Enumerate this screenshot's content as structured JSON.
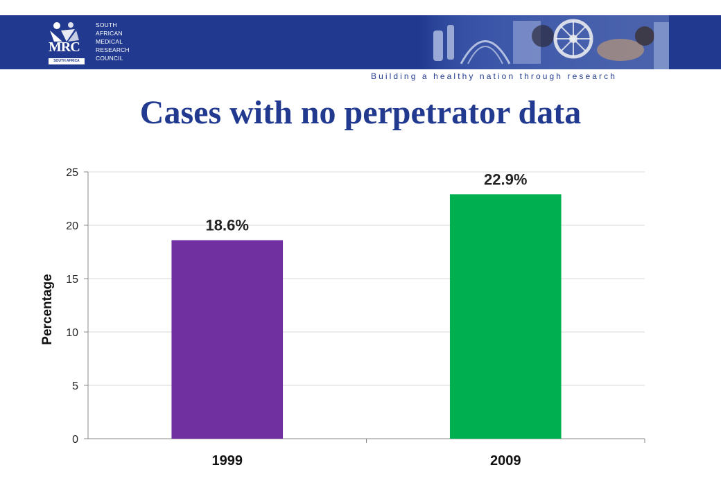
{
  "header": {
    "org_lines": [
      "SOUTH",
      "AFRICAN",
      "MEDICAL",
      "RESEARCH",
      "COUNCIL"
    ],
    "logo_text": "MRC",
    "logo_sub": "SOUTH AFRICA",
    "tagline": "Building a healthy nation through research",
    "banner_color": "#213a8f"
  },
  "slide": {
    "title": "Cases with no perpetrator data"
  },
  "chart_data": {
    "type": "bar",
    "categories": [
      "1999",
      "2009"
    ],
    "values": [
      18.6,
      22.9
    ],
    "data_labels": [
      "18.6%",
      "22.9%"
    ],
    "colors": [
      "#7030a0",
      "#00b050"
    ],
    "title": "Cases with no perpetrator data",
    "xlabel": "",
    "ylabel": "Percentage",
    "ylim": [
      0,
      25
    ],
    "yticks": [
      0,
      5,
      10,
      15,
      20,
      25
    ],
    "grid": true,
    "legend": "none"
  }
}
